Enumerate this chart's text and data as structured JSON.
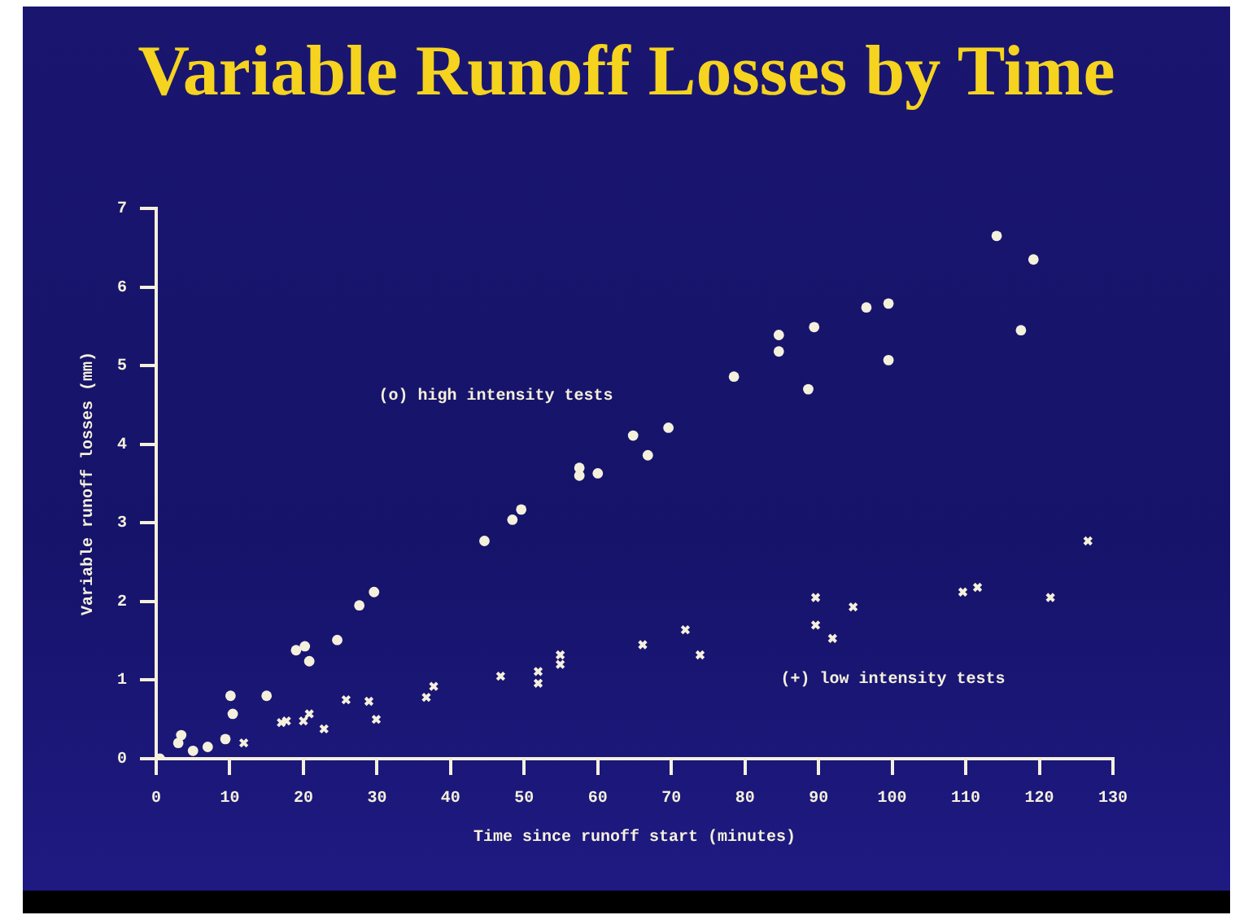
{
  "chart_data": {
    "type": "scatter",
    "title": "Variable Runoff Losses by Time",
    "xlabel": "Time since runoff start (minutes)",
    "ylabel": "Variable runoff losses (mm)",
    "xlim": [
      0,
      130
    ],
    "xticks": [
      0,
      10,
      20,
      30,
      40,
      50,
      60,
      70,
      80,
      90,
      100,
      110,
      120,
      130
    ],
    "ylim": [
      0,
      7
    ],
    "yticks": [
      0,
      1,
      2,
      3,
      4,
      5,
      6,
      7
    ],
    "grid": false,
    "legend": false,
    "series": [
      {
        "color": "#f4f0dc",
        "marker": "circle",
        "x": [
          0.5,
          3,
          3.4,
          5,
          7,
          9.4,
          10.1,
          10.4,
          15,
          19,
          20.2,
          20.8,
          24.6,
          27.6,
          29.6,
          44.6,
          48.4,
          49.6,
          57.5,
          57.5,
          60,
          64.8,
          66.8,
          69.6,
          78.5,
          84.6,
          84.6,
          88.6,
          89.4,
          96.5,
          99.5,
          99.5,
          114.2,
          117.5,
          119.2
        ],
        "values": [
          0,
          0.2,
          0.3,
          0.1,
          0.15,
          0.25,
          0.8,
          0.57,
          0.8,
          1.38,
          1.43,
          1.24,
          1.51,
          1.95,
          2.12,
          2.77,
          3.04,
          3.17,
          3.6,
          3.7,
          3.63,
          4.11,
          3.86,
          4.21,
          4.86,
          5.39,
          5.18,
          4.7,
          5.49,
          5.74,
          5.79,
          5.07,
          6.65,
          5.45,
          6.35
        ]
      },
      {
        "color": "#f4f0dc",
        "marker": "cross",
        "x": [
          11.9,
          17,
          17.7,
          20,
          20.8,
          22.8,
          25.8,
          28.9,
          29.9,
          36.7,
          37.7,
          46.8,
          51.9,
          51.9,
          54.9,
          54.9,
          66.1,
          71.9,
          73.9,
          89.6,
          89.6,
          91.9,
          94.7,
          109.6,
          111.6,
          121.5,
          126.6
        ],
        "values": [
          0.2,
          0.46,
          0.48,
          0.48,
          0.57,
          0.38,
          0.75,
          0.73,
          0.5,
          0.78,
          0.92,
          1.05,
          1.11,
          0.96,
          1.32,
          1.2,
          1.45,
          1.64,
          1.32,
          2.05,
          1.7,
          1.53,
          1.93,
          2.12,
          2.18,
          2.05,
          2.77
        ]
      }
    ],
    "annotations": [
      "(o) high intensity tests",
      "(+) low intensity tests"
    ]
  }
}
